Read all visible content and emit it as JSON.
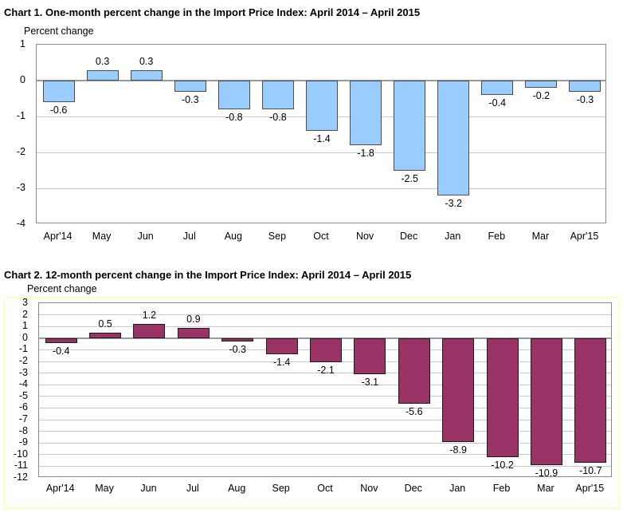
{
  "style": {
    "background": "#FFFFFF",
    "text": "#000000",
    "gridline": "#C9C9C9",
    "zero_line": "#9A9A9A",
    "plot_border": "#8A8A8A",
    "frame_border": "#FFFFCC"
  },
  "chart_data": [
    {
      "type": "bar",
      "title": "Chart 1. One-month percent change in the Import Price Index: April 2014 – April 2015",
      "ylabel": "Percent change",
      "xlabel": "",
      "categories": [
        "Apr'14",
        "May",
        "Jun",
        "Jul",
        "Aug",
        "Sep",
        "Oct",
        "Nov",
        "Dec",
        "Jan",
        "Feb",
        "Mar",
        "Apr'15"
      ],
      "values": [
        -0.6,
        0.3,
        0.3,
        -0.3,
        -0.8,
        -0.8,
        -1.4,
        -1.8,
        -2.5,
        -3.2,
        -0.4,
        -0.2,
        -0.3
      ],
      "data_labels": [
        "-0.6",
        "0.3",
        "0.3",
        "-0.3",
        "-0.8",
        "-0.8",
        "-1.4",
        "-1.8",
        "-2.5",
        "-3.2",
        "-0.4",
        "-0.2",
        "-0.3"
      ],
      "ylim": [
        -4,
        1
      ],
      "ytick_step": 1,
      "grid": true,
      "legend": "none",
      "bar_fill": "#99CCFF",
      "bar_border": "#4D4D4D"
    },
    {
      "type": "bar",
      "title": "Chart 2. 12-month percent change in the Import Price Index: April 2014 – April 2015",
      "ylabel": "Percent change",
      "xlabel": "",
      "categories": [
        "Apr'14",
        "May",
        "Jun",
        "Jul",
        "Aug",
        "Sep",
        "Oct",
        "Nov",
        "Dec",
        "Jan",
        "Feb",
        "Mar",
        "Apr'15"
      ],
      "values": [
        -0.4,
        0.5,
        1.2,
        0.9,
        -0.3,
        -1.4,
        -2.1,
        -3.1,
        -5.6,
        -8.9,
        -10.2,
        -10.9,
        -10.7
      ],
      "data_labels": [
        "-0.4",
        "0.5",
        "1.2",
        "0.9",
        "-0.3",
        "-1.4",
        "-2.1",
        "-3.1",
        "-5.6",
        "-8.9",
        "-10.2",
        "-10.9",
        "-10.7"
      ],
      "ylim": [
        -12,
        3
      ],
      "ytick_step": 1,
      "grid": true,
      "legend": "none",
      "bar_fill": "#993366",
      "bar_border": "#1F1A1D"
    }
  ]
}
